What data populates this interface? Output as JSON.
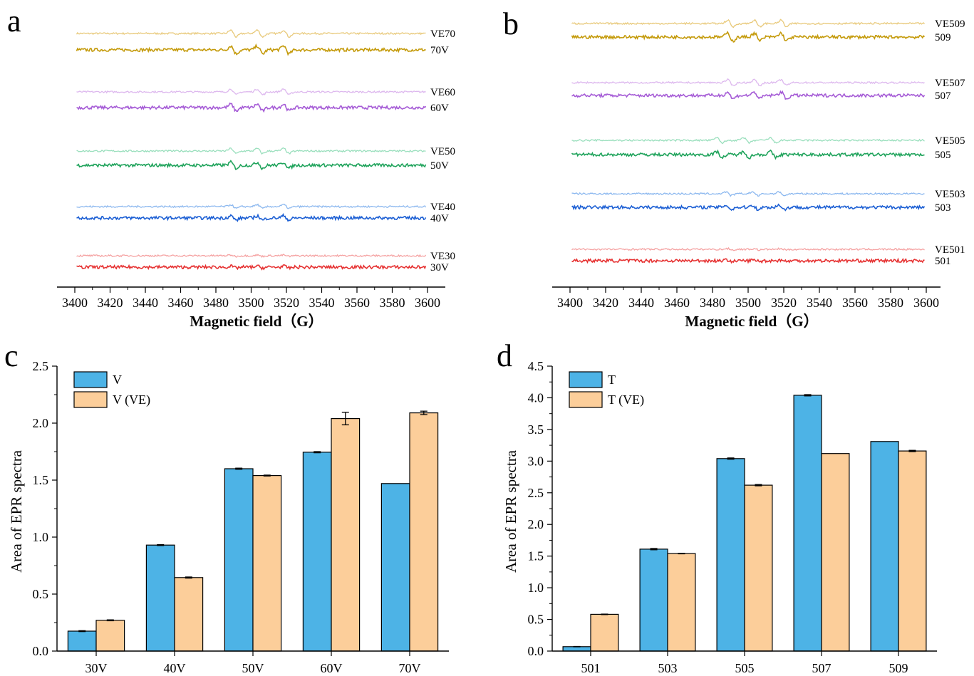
{
  "colors": {
    "bar_primary": "#4DB3E6",
    "bar_secondary": "#FCCE9A",
    "spectra": {
      "70": [
        "#E8C97A",
        "#C49A0A"
      ],
      "60": [
        "#DDB8EE",
        "#A55BD6"
      ],
      "50": [
        "#9ADFBD",
        "#1FA35B"
      ],
      "40": [
        "#8CB8EF",
        "#1C5FD4"
      ],
      "30": [
        "#F5A2A2",
        "#E63232"
      ]
    }
  },
  "panels": {
    "a": {
      "letter": "a",
      "xlabel": "Magnetic field（G）",
      "xticks": [
        "3400",
        "3420",
        "3440",
        "3460",
        "3480",
        "3500",
        "3520",
        "3540",
        "3560",
        "3580",
        "3600"
      ],
      "spectra": [
        {
          "label": "VE70",
          "color_key": "70",
          "variant": 0
        },
        {
          "label": "70V",
          "color_key": "70",
          "variant": 1
        },
        {
          "label": "VE60",
          "color_key": "60",
          "variant": 0
        },
        {
          "label": "60V",
          "color_key": "60",
          "variant": 1
        },
        {
          "label": "VE50",
          "color_key": "50",
          "variant": 0
        },
        {
          "label": "50V",
          "color_key": "50",
          "variant": 1
        },
        {
          "label": "VE40",
          "color_key": "40",
          "variant": 0
        },
        {
          "label": "40V",
          "color_key": "40",
          "variant": 1
        },
        {
          "label": "VE30",
          "color_key": "30",
          "variant": 0
        },
        {
          "label": "30V",
          "color_key": "30",
          "variant": 1
        }
      ]
    },
    "b": {
      "letter": "b",
      "xlabel": "Magnetic field（G）",
      "xticks": [
        "3400",
        "3420",
        "3440",
        "3460",
        "3480",
        "3500",
        "3520",
        "3540",
        "3560",
        "3580",
        "3600"
      ],
      "spectra": [
        {
          "label": "VE509",
          "color_key": "70",
          "variant": 0
        },
        {
          "label": "509",
          "color_key": "70",
          "variant": 1
        },
        {
          "label": "VE507",
          "color_key": "60",
          "variant": 0
        },
        {
          "label": "507",
          "color_key": "60",
          "variant": 1
        },
        {
          "label": "VE505",
          "color_key": "50",
          "variant": 0
        },
        {
          "label": "505",
          "color_key": "50",
          "variant": 1
        },
        {
          "label": "VE503",
          "color_key": "40",
          "variant": 0
        },
        {
          "label": "503",
          "color_key": "40",
          "variant": 1
        },
        {
          "label": "VE501",
          "color_key": "30",
          "variant": 0
        },
        {
          "label": "501",
          "color_key": "30",
          "variant": 1
        }
      ]
    },
    "c": {
      "letter": "c"
    },
    "d": {
      "letter": "d"
    }
  },
  "chart_data": [
    {
      "panel": "a",
      "type": "line",
      "title": "",
      "xlabel": "Magnetic field（G）",
      "ylabel": "",
      "xlim": [
        3400,
        3600
      ],
      "series": [
        {
          "name": "VE70"
        },
        {
          "name": "70V"
        },
        {
          "name": "VE60"
        },
        {
          "name": "60V"
        },
        {
          "name": "VE50"
        },
        {
          "name": "50V"
        },
        {
          "name": "VE40"
        },
        {
          "name": "40V"
        },
        {
          "name": "VE30"
        },
        {
          "name": "30V"
        }
      ]
    },
    {
      "panel": "b",
      "type": "line",
      "title": "",
      "xlabel": "Magnetic field（G）",
      "ylabel": "",
      "xlim": [
        3400,
        3600
      ],
      "series": [
        {
          "name": "VE509"
        },
        {
          "name": "509"
        },
        {
          "name": "VE507"
        },
        {
          "name": "507"
        },
        {
          "name": "VE505"
        },
        {
          "name": "505"
        },
        {
          "name": "VE503"
        },
        {
          "name": "503"
        },
        {
          "name": "VE501"
        },
        {
          "name": "501"
        }
      ]
    },
    {
      "panel": "c",
      "type": "bar",
      "title": "",
      "xlabel": "",
      "ylabel": "Area of  EPR spectra",
      "ylim": [
        0,
        2.5
      ],
      "yticks": [
        "0.0",
        "0.5",
        "1.0",
        "1.5",
        "2.0",
        "2.5"
      ],
      "categories": [
        "30V",
        "40V",
        "50V",
        "60V",
        "70V"
      ],
      "legend_position": "top-left",
      "series": [
        {
          "name": "V",
          "values": [
            0.175,
            0.93,
            1.6,
            1.745,
            1.47
          ],
          "errors": [
            0.004,
            0.004,
            0.005,
            0.005,
            0.0
          ]
        },
        {
          "name": "V (VE)",
          "values": [
            0.27,
            0.645,
            1.54,
            2.04,
            2.09
          ],
          "errors": [
            0.004,
            0.005,
            0.004,
            0.055,
            0.015
          ]
        }
      ]
    },
    {
      "panel": "d",
      "type": "bar",
      "title": "",
      "xlabel": "",
      "ylabel": "Area of  EPR spectra",
      "ylim": [
        0,
        4.5
      ],
      "yticks": [
        "0.0",
        "0.5",
        "1.0",
        "1.5",
        "2.0",
        "2.5",
        "3.0",
        "3.5",
        "4.0",
        "4.5"
      ],
      "categories": [
        "501",
        "503",
        "505",
        "507",
        "509"
      ],
      "legend_position": "top-left",
      "series": [
        {
          "name": "T",
          "values": [
            0.07,
            1.61,
            3.04,
            4.04,
            3.31
          ],
          "errors": [
            0.003,
            0.01,
            0.01,
            0.01,
            0.0
          ]
        },
        {
          "name": "T (VE)",
          "values": [
            0.58,
            1.54,
            2.62,
            3.12,
            3.16
          ],
          "errors": [
            0.004,
            0.004,
            0.01,
            0.0,
            0.01
          ]
        }
      ]
    }
  ]
}
